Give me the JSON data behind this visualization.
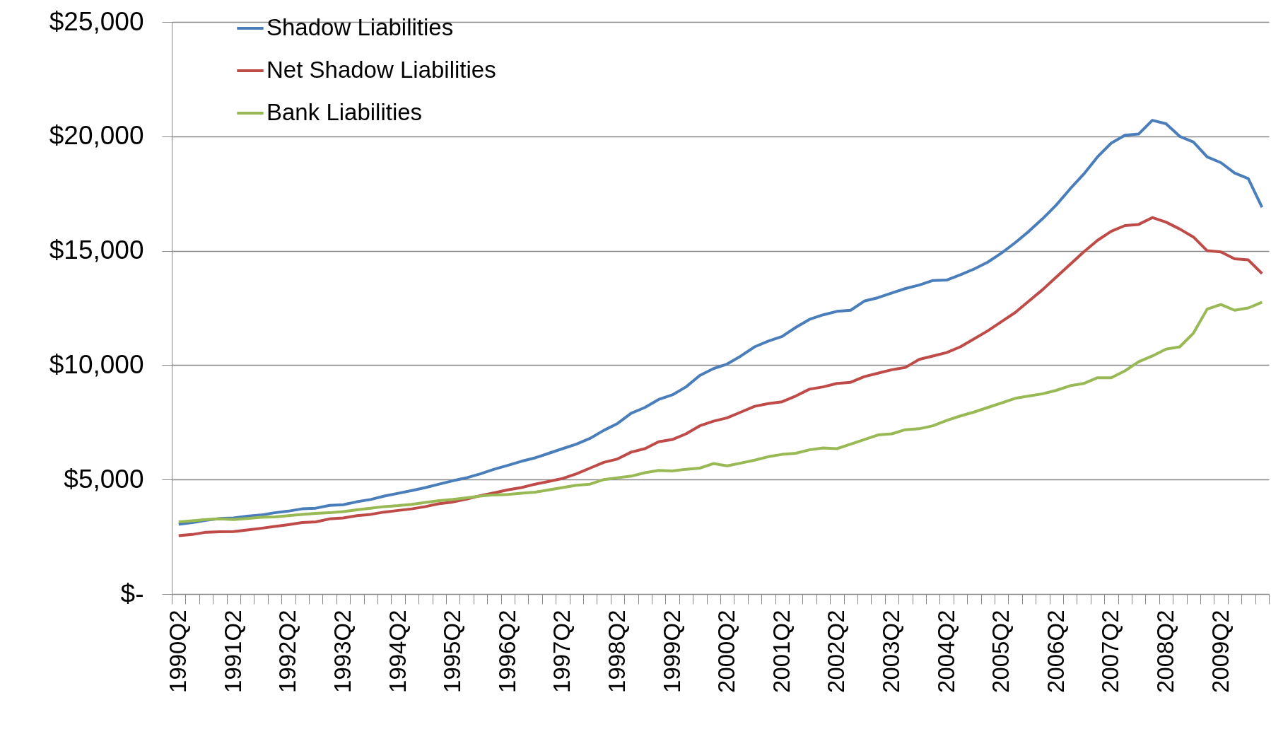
{
  "chart_data": {
    "type": "line",
    "categories": [
      "1990Q2",
      null,
      null,
      null,
      "1991Q2",
      null,
      null,
      null,
      "1992Q2",
      null,
      null,
      null,
      "1993Q2",
      null,
      null,
      null,
      "1994Q2",
      null,
      null,
      null,
      "1995Q2",
      null,
      null,
      null,
      "1996Q2",
      null,
      null,
      null,
      "1997Q2",
      null,
      null,
      null,
      "1998Q2",
      null,
      null,
      null,
      "1999Q2",
      null,
      null,
      null,
      "2000Q2",
      null,
      null,
      null,
      "2001Q2",
      null,
      null,
      null,
      "2002Q2",
      null,
      null,
      null,
      "2003Q2",
      null,
      null,
      null,
      "2004Q2",
      null,
      null,
      null,
      "2005Q2",
      null,
      null,
      null,
      "2006Q2",
      null,
      null,
      null,
      "2007Q2",
      null,
      null,
      null,
      "2008Q2",
      null,
      null,
      null,
      "2009Q2",
      null,
      null,
      null
    ],
    "series": [
      {
        "name": "Shadow Liabilities",
        "color": "#4a7ebb",
        "values": [
          3050,
          3120,
          3220,
          3300,
          3320,
          3400,
          3450,
          3550,
          3620,
          3720,
          3750,
          3870,
          3900,
          4030,
          4130,
          4280,
          4400,
          4520,
          4650,
          4800,
          4950,
          5080,
          5250,
          5450,
          5620,
          5800,
          5950,
          6150,
          6350,
          6550,
          6800,
          7150,
          7450,
          7900,
          8150,
          8500,
          8700,
          9050,
          9550,
          9850,
          10050,
          10400,
          10800,
          11050,
          11250,
          11650,
          12000,
          12200,
          12350,
          12400,
          12800,
          12950,
          13150,
          13350,
          13500,
          13700,
          13720,
          13950,
          14200,
          14500,
          14900,
          15350,
          15850,
          16400,
          17000,
          17700,
          18350,
          19100,
          19700,
          20050,
          20100,
          20700,
          20550,
          20000,
          19750,
          19100,
          18850,
          18400,
          18150,
          16900
        ]
      },
      {
        "name": "Net Shadow Liabilities",
        "color": "#be4b48",
        "values": [
          2550,
          2600,
          2700,
          2720,
          2730,
          2800,
          2870,
          2950,
          3030,
          3120,
          3150,
          3280,
          3320,
          3420,
          3480,
          3580,
          3650,
          3720,
          3820,
          3950,
          4020,
          4150,
          4300,
          4420,
          4550,
          4650,
          4800,
          4920,
          5050,
          5250,
          5500,
          5750,
          5900,
          6200,
          6350,
          6650,
          6750,
          7000,
          7350,
          7550,
          7700,
          7950,
          8200,
          8320,
          8400,
          8650,
          8950,
          9050,
          9200,
          9250,
          9500,
          9650,
          9800,
          9900,
          10250,
          10400,
          10550,
          10800,
          11150,
          11500,
          11900,
          12300,
          12800,
          13300,
          13850,
          14400,
          14950,
          15450,
          15850,
          16100,
          16150,
          16450,
          16250,
          15950,
          15600,
          15000,
          14950,
          14650,
          14600,
          14000
        ]
      },
      {
        "name": "Bank Liabilities",
        "color": "#98b954",
        "values": [
          3150,
          3200,
          3250,
          3280,
          3250,
          3300,
          3350,
          3370,
          3420,
          3480,
          3520,
          3550,
          3600,
          3680,
          3750,
          3820,
          3860,
          3920,
          4000,
          4080,
          4130,
          4200,
          4280,
          4330,
          4350,
          4400,
          4450,
          4550,
          4650,
          4750,
          4800,
          5000,
          5080,
          5150,
          5300,
          5400,
          5380,
          5450,
          5500,
          5700,
          5600,
          5720,
          5850,
          6000,
          6100,
          6150,
          6300,
          6380,
          6350,
          6550,
          6750,
          6950,
          7000,
          7180,
          7220,
          7350,
          7580,
          7780,
          7950,
          8150,
          8350,
          8550,
          8650,
          8750,
          8900,
          9100,
          9200,
          9450,
          9450,
          9750,
          10150,
          10400,
          10700,
          10800,
          11400,
          12450,
          12650,
          12400,
          12500,
          12750
        ]
      }
    ],
    "ylim": [
      0,
      25000
    ],
    "yticks": [
      {
        "value": 0,
        "label": "$-"
      },
      {
        "value": 5000,
        "label": "$5,000"
      },
      {
        "value": 10000,
        "label": "$10,000"
      },
      {
        "value": 15000,
        "label": "$15,000"
      },
      {
        "value": 20000,
        "label": "$20,000"
      },
      {
        "value": 25000,
        "label": "$25,000"
      }
    ],
    "grid": "y",
    "legend": "top left",
    "marker": "none",
    "line_style": "solid"
  }
}
